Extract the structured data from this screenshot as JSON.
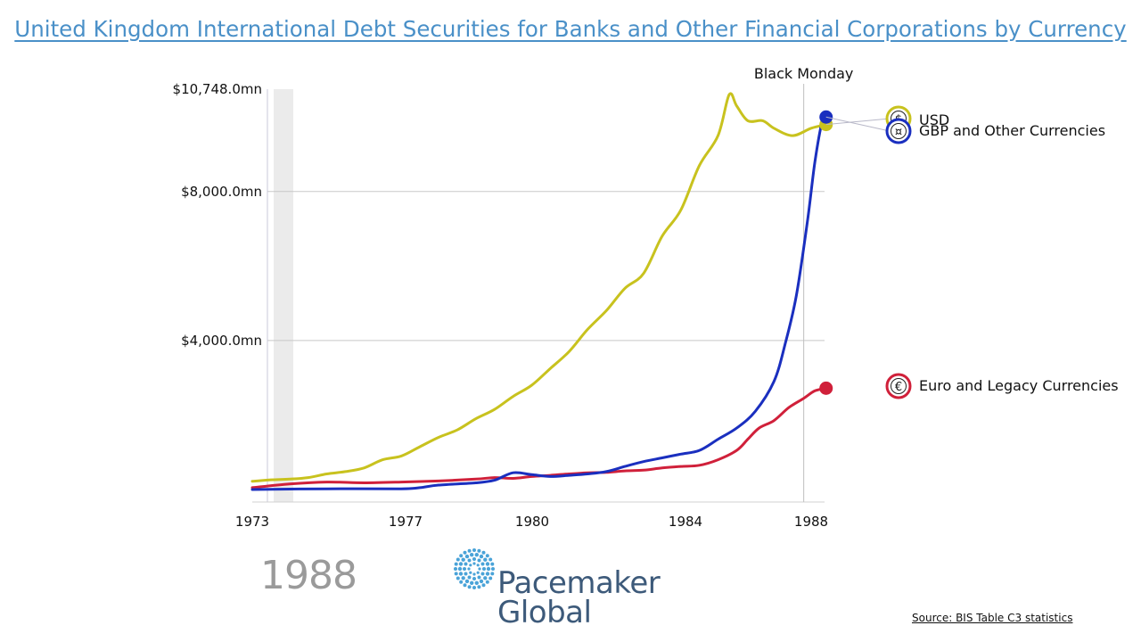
{
  "title": "United Kingdom International Debt Securities for Banks and Other Financial Corporations by Currency",
  "current_year_label": "1988",
  "logo": {
    "line1": "Pacemaker",
    "line2": "Global"
  },
  "source": "Source: BIS Table C3 statistics",
  "colors": {
    "usd": "#c8c21e",
    "gbp": "#1a2fbf",
    "euro": "#d0203a",
    "title": "#4a90c8",
    "gridline": "#c8c8c8"
  },
  "chart_data": {
    "type": "line",
    "x_axis": {
      "type": "year",
      "ticks": [
        "1973",
        "1977",
        "1980",
        "1984",
        "1988"
      ],
      "range": [
        1973,
        1988.4
      ]
    },
    "y_axis": {
      "ticks": [
        "$4,000.0mn",
        "$8,000.0mn",
        "$10,748.0mn"
      ],
      "tick_values": [
        4000,
        8000,
        10748
      ],
      "range": [
        0,
        10748
      ],
      "grid": true
    },
    "annotation": {
      "label": "Black Monday",
      "x": 1987.8
    },
    "legend_placement": "right",
    "series": [
      {
        "name": "USD",
        "icon": "dollar-icon",
        "color": "#c8c21e",
        "points": [
          [
            1973,
            220
          ],
          [
            1973.5,
            260
          ],
          [
            1974,
            280
          ],
          [
            1974.5,
            320
          ],
          [
            1975,
            420
          ],
          [
            1975.5,
            480
          ],
          [
            1976,
            580
          ],
          [
            1976.5,
            800
          ],
          [
            1977,
            900
          ],
          [
            1977.5,
            1150
          ],
          [
            1978,
            1400
          ],
          [
            1978.5,
            1600
          ],
          [
            1979,
            1900
          ],
          [
            1979.5,
            2150
          ],
          [
            1980,
            2500
          ],
          [
            1980.5,
            2800
          ],
          [
            1981,
            3250
          ],
          [
            1981.5,
            3700
          ],
          [
            1982,
            4300
          ],
          [
            1982.5,
            4800
          ],
          [
            1983,
            5400
          ],
          [
            1983.5,
            5800
          ],
          [
            1984,
            6800
          ],
          [
            1984.5,
            7500
          ],
          [
            1985,
            8700
          ],
          [
            1985.5,
            9500
          ],
          [
            1985.8,
            10600
          ],
          [
            1986,
            10300
          ],
          [
            1986.3,
            9900
          ],
          [
            1986.7,
            9900
          ],
          [
            1987,
            9700
          ],
          [
            1987.5,
            9500
          ],
          [
            1988,
            9700
          ],
          [
            1988.4,
            9800
          ]
        ]
      },
      {
        "name": "GBP and Other Currencies",
        "icon": "currency-icon",
        "color": "#1a2fbf",
        "points": [
          [
            1973,
            0
          ],
          [
            1975,
            20
          ],
          [
            1977,
            20
          ],
          [
            1977.5,
            50
          ],
          [
            1978,
            120
          ],
          [
            1979,
            180
          ],
          [
            1979.5,
            250
          ],
          [
            1980,
            450
          ],
          [
            1980.5,
            400
          ],
          [
            1981,
            350
          ],
          [
            1981.5,
            380
          ],
          [
            1982,
            420
          ],
          [
            1982.5,
            480
          ],
          [
            1983,
            620
          ],
          [
            1983.5,
            750
          ],
          [
            1984,
            850
          ],
          [
            1984.5,
            950
          ],
          [
            1985,
            1050
          ],
          [
            1985.5,
            1350
          ],
          [
            1986,
            1650
          ],
          [
            1986.5,
            2100
          ],
          [
            1987,
            2900
          ],
          [
            1987.3,
            3900
          ],
          [
            1987.6,
            5200
          ],
          [
            1987.9,
            7200
          ],
          [
            1988.1,
            8800
          ],
          [
            1988.3,
            9900
          ],
          [
            1988.4,
            10000
          ]
        ]
      },
      {
        "name": "Euro and Legacy Currencies",
        "icon": "euro-icon",
        "color": "#d0203a",
        "points": [
          [
            1973,
            50
          ],
          [
            1974,
            150
          ],
          [
            1975,
            200
          ],
          [
            1976,
            180
          ],
          [
            1977,
            200
          ],
          [
            1978,
            230
          ],
          [
            1979,
            280
          ],
          [
            1979.5,
            320
          ],
          [
            1980,
            300
          ],
          [
            1980.5,
            350
          ],
          [
            1981,
            380
          ],
          [
            1981.5,
            420
          ],
          [
            1982,
            450
          ],
          [
            1982.5,
            460
          ],
          [
            1983,
            500
          ],
          [
            1983.5,
            520
          ],
          [
            1984,
            580
          ],
          [
            1984.5,
            620
          ],
          [
            1985,
            650
          ],
          [
            1985.5,
            800
          ],
          [
            1986,
            1050
          ],
          [
            1986.3,
            1350
          ],
          [
            1986.6,
            1650
          ],
          [
            1987,
            1850
          ],
          [
            1987.4,
            2200
          ],
          [
            1987.8,
            2450
          ],
          [
            1988.1,
            2650
          ],
          [
            1988.4,
            2720
          ]
        ]
      }
    ]
  }
}
